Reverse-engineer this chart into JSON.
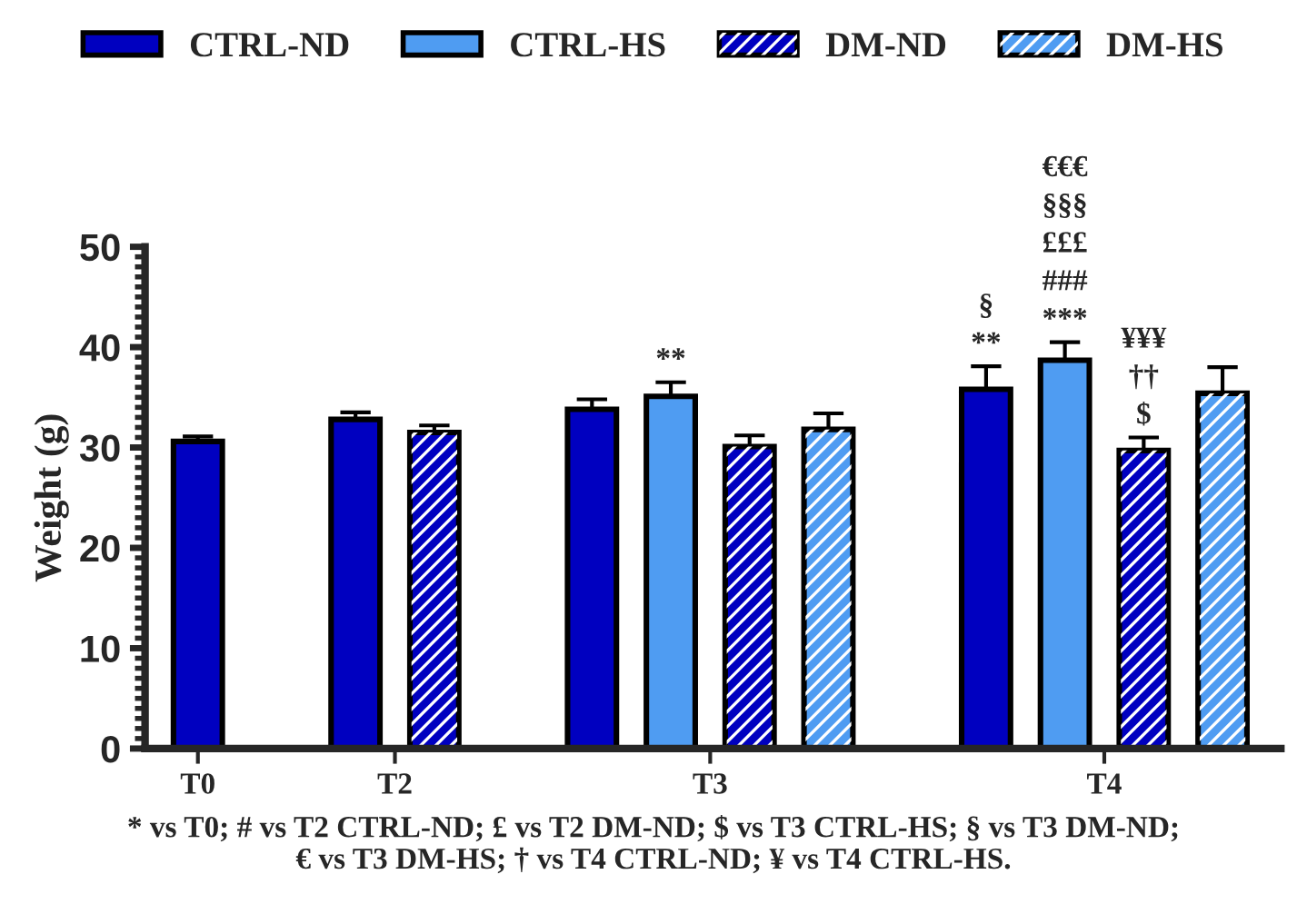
{
  "chart_data": {
    "type": "bar",
    "categories": [
      "T0",
      "T2",
      "T3",
      "T4"
    ],
    "ylabel": "Weight (g)",
    "ylim": [
      0,
      50
    ],
    "yticks": [
      0,
      10,
      20,
      30,
      40,
      50
    ],
    "grid": false,
    "legend": "top",
    "series": [
      {
        "name": "CTRL-ND",
        "color": "#0000c0",
        "values": [
          30.6,
          32.8,
          33.8,
          35.8
        ],
        "errors": [
          [
            30.6,
            31.1
          ],
          [
            32.8,
            33.5
          ],
          [
            33.8,
            34.8
          ],
          [
            35.8,
            38.1
          ]
        ]
      },
      {
        "name": "CTRL-HS",
        "color": "#4f9cf2",
        "values": [
          null,
          null,
          35.1,
          38.7
        ],
        "errors": [
          null,
          null,
          [
            35.1,
            36.5
          ],
          [
            38.7,
            40.5
          ]
        ]
      },
      {
        "name": "DM-ND",
        "color": "#0000c0",
        "values": [
          null,
          31.5,
          30.1,
          29.7
        ],
        "errors": [
          null,
          [
            31.5,
            32.2
          ],
          [
            30.1,
            31.2
          ],
          [
            29.7,
            31.0
          ]
        ]
      },
      {
        "name": "DM-HS",
        "color": "#4f9cf2",
        "values": [
          null,
          null,
          31.8,
          35.4
        ],
        "errors": [
          null,
          null,
          [
            31.8,
            33.4
          ],
          [
            35.4,
            38.0
          ]
        ]
      }
    ],
    "annotations": [
      "**",
      "§\n**",
      "€€€\n§§§\n£££\n###\n***",
      "¥¥¥\n††\n$",
      "* vs T0; # vs T2 CTRL-ND; £ vs T2 DM-ND; $ vs T3 CTRL-HS; § vs T3 DM-ND;\n€ vs T3 DM-HS; † vs T4 CTRL-ND; ¥ vs T4 CTRL-HS."
    ]
  }
}
